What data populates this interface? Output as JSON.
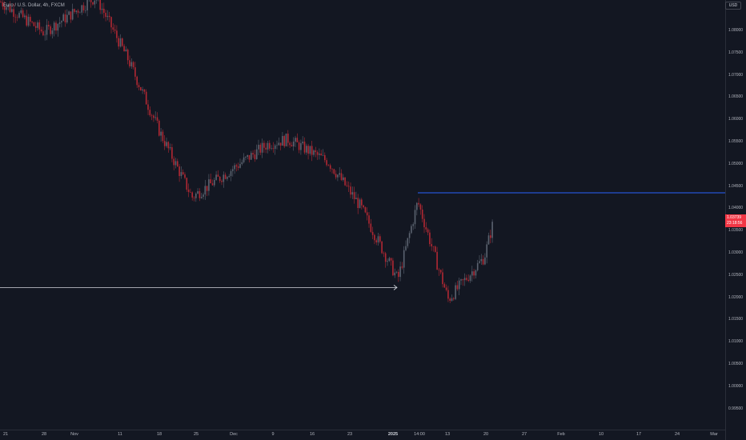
{
  "header": {
    "symbol_title": "Euro / U.S. Dollar, 4h, FXCM"
  },
  "price_axis": {
    "currency_button": "USD",
    "ticks": [
      "1.08000",
      "1.07500",
      "1.07000",
      "1.06500",
      "1.06000",
      "1.05500",
      "1.05000",
      "1.04500",
      "1.04000",
      "1.03500",
      "1.03000",
      "1.02500",
      "1.02000",
      "1.01500",
      "1.01000",
      "1.00500",
      "1.00000",
      "0.99500"
    ],
    "last_price": "1.03739",
    "countdown": "23:18:56"
  },
  "time_axis": {
    "ticks": [
      {
        "label": "21",
        "bold": false
      },
      {
        "label": "28",
        "bold": false
      },
      {
        "label": "Nov",
        "bold": false
      },
      {
        "label": "11",
        "bold": false
      },
      {
        "label": "18",
        "bold": false
      },
      {
        "label": "25",
        "bold": false
      },
      {
        "label": "Dec",
        "bold": false
      },
      {
        "label": "9",
        "bold": false
      },
      {
        "label": "16",
        "bold": false
      },
      {
        "label": "23",
        "bold": false
      },
      {
        "label": "2025",
        "bold": true
      },
      {
        "label": "14:00",
        "bold": false
      },
      {
        "label": "13",
        "bold": false
      },
      {
        "label": "20",
        "bold": false
      },
      {
        "label": "27",
        "bold": false
      },
      {
        "label": "Feb",
        "bold": false
      },
      {
        "label": "10",
        "bold": false
      },
      {
        "label": "17",
        "bold": false
      },
      {
        "label": "24",
        "bold": false
      },
      {
        "label": "Mar",
        "bold": false
      }
    ]
  },
  "colors": {
    "background": "#131722",
    "up_candle": "#5b6370",
    "down_candle": "#b22833",
    "resistance_line": "#2962ff",
    "support_arrow": "#d1d4dc",
    "last_price": "#f23645"
  },
  "chart_data": {
    "type": "candlestick",
    "title": "",
    "ylim": [
      0.993,
      1.089
    ],
    "x": [
      "Oct 21",
      "Oct 28",
      "Nov 4",
      "Nov 11",
      "Nov 18",
      "Nov 25",
      "Dec 2",
      "Dec 9",
      "Dec 16",
      "Dec 23",
      "Jan 2",
      "Jan 6",
      "Jan 13",
      "Jan 20",
      "Jan 21"
    ],
    "close_path": [
      1.0865,
      1.0795,
      1.0875,
      1.0735,
      1.057,
      1.0425,
      1.0545,
      1.0555,
      1.0505,
      1.0405,
      1.024,
      1.0415,
      1.0195,
      1.029,
      1.0374
    ],
    "low_2025": 1.0178,
    "high_2025": 1.0435,
    "annotations": [
      {
        "kind": "horizontal_ray",
        "price": 1.0435,
        "from": "Jan 6",
        "color": "#2962ff"
      },
      {
        "kind": "horizontal_arrow",
        "price": 1.0222,
        "to": "Jan 2",
        "color": "#d1d4dc"
      }
    ]
  }
}
